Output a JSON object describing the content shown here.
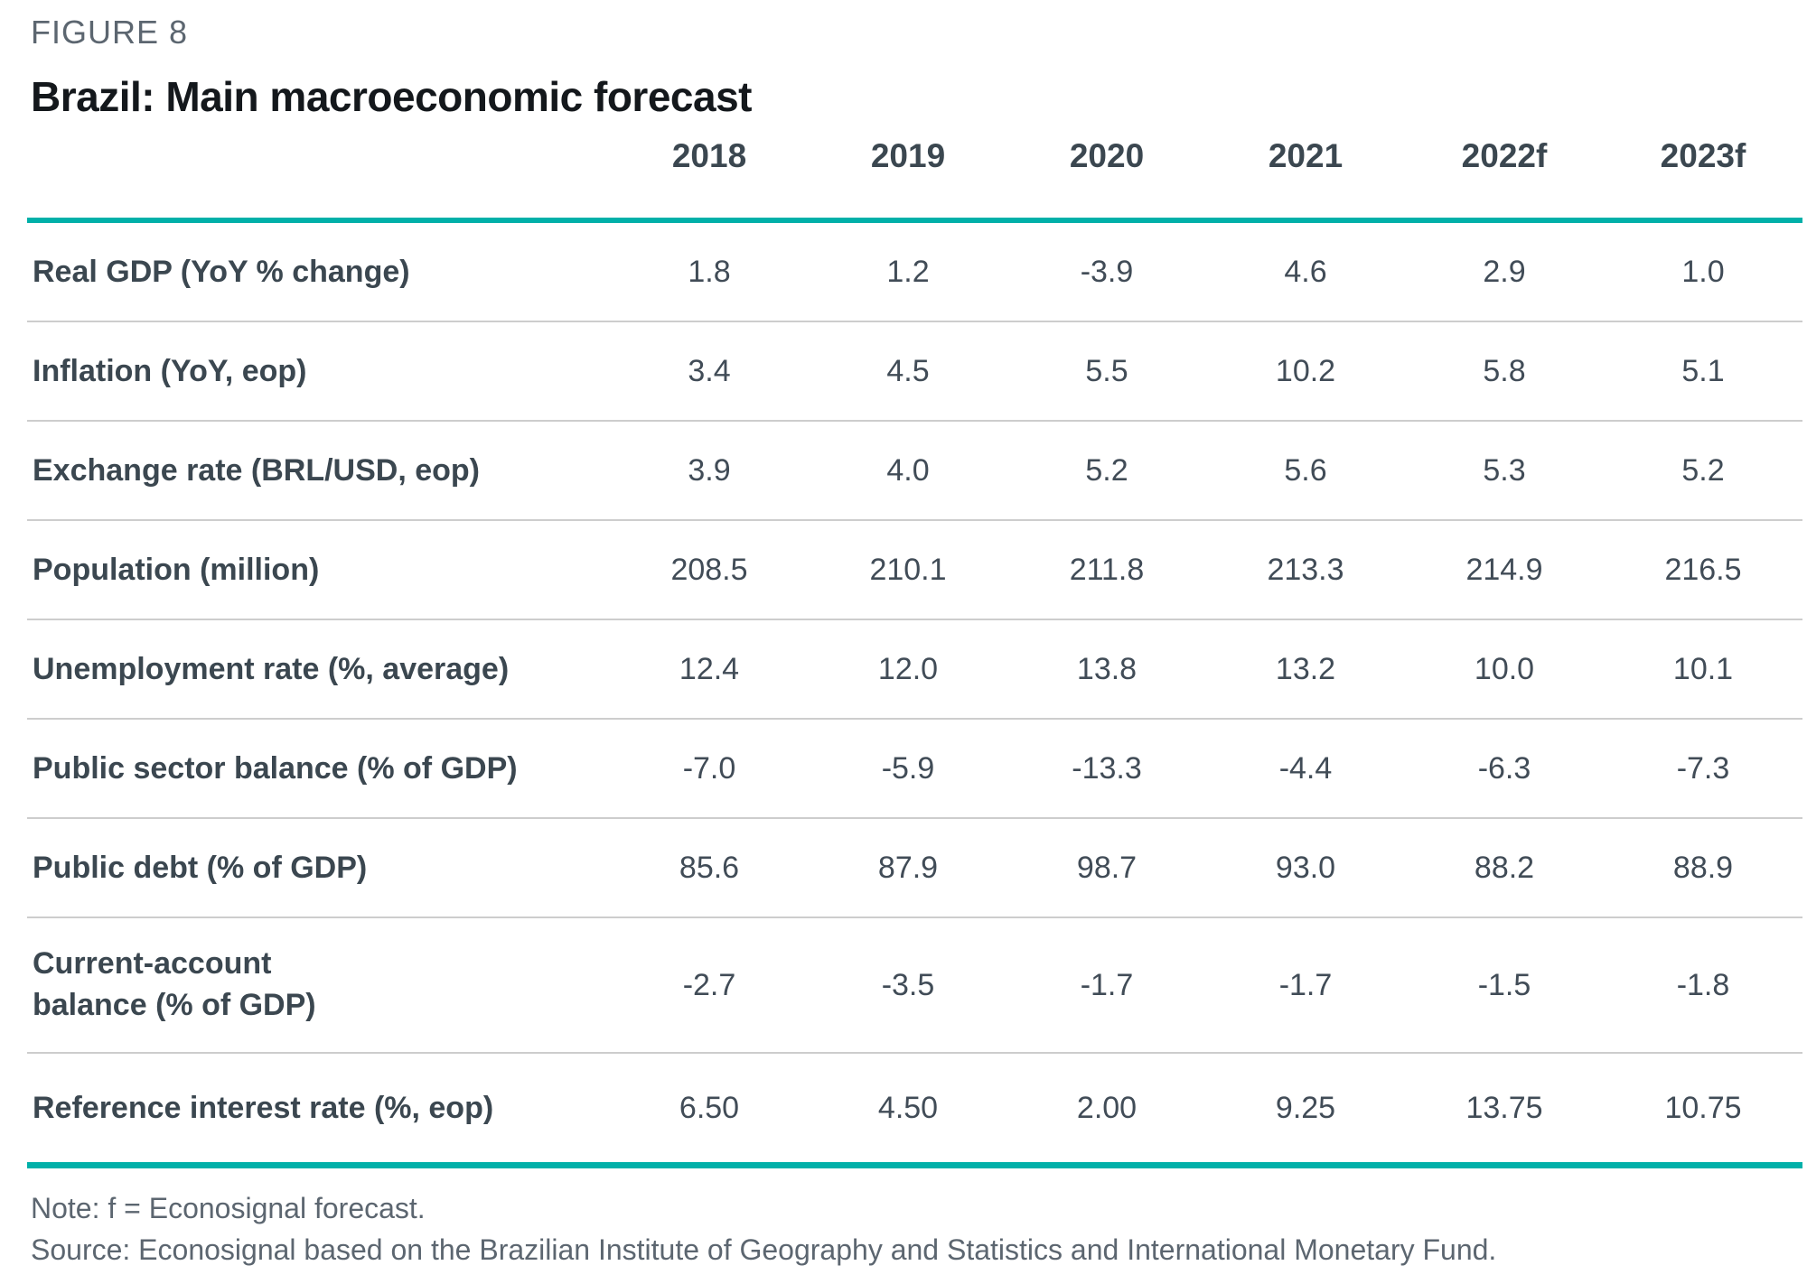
{
  "colors": {
    "accent_teal": "#00b0a9",
    "row_divider": "#cdcdcd",
    "heading_gray": "#5c6670",
    "label_dark_slate": "#3b4750",
    "title_black": "#14181c"
  },
  "chart_data": {
    "type": "table",
    "figure_label": "FIGURE 8",
    "title": "Brazil: Main macroeconomic forecast",
    "columns": [
      "2018",
      "2019",
      "2020",
      "2021",
      "2022f",
      "2023f"
    ],
    "rows": [
      {
        "label": "Real GDP (YoY % change)",
        "values": [
          "1.8",
          "1.2",
          "-3.9",
          "4.6",
          "2.9",
          "1.0"
        ]
      },
      {
        "label": "Inflation (YoY, eop)",
        "values": [
          "3.4",
          "4.5",
          "5.5",
          "10.2",
          "5.8",
          "5.1"
        ]
      },
      {
        "label": "Exchange rate (BRL/USD, eop)",
        "values": [
          "3.9",
          "4.0",
          "5.2",
          "5.6",
          "5.3",
          "5.2"
        ]
      },
      {
        "label": "Population (million)",
        "values": [
          "208.5",
          "210.1",
          "211.8",
          "213.3",
          "214.9",
          "216.5"
        ]
      },
      {
        "label": "Unemployment rate (%, average)",
        "values": [
          "12.4",
          "12.0",
          "13.8",
          "13.2",
          "10.0",
          "10.1"
        ]
      },
      {
        "label": "Public sector balance (% of GDP)",
        "values": [
          "-7.0",
          "-5.9",
          "-13.3",
          "-4.4",
          "-6.3",
          "-7.3"
        ]
      },
      {
        "label": "Public debt (% of GDP)",
        "values": [
          "85.6",
          "87.9",
          "98.7",
          "93.0",
          "88.2",
          "88.9"
        ]
      },
      {
        "label": "Current-account balance (% of GDP)",
        "values": [
          "-2.7",
          "-3.5",
          "-1.7",
          "-1.7",
          "-1.5",
          "-1.8"
        ]
      },
      {
        "label": "Reference interest rate (%, eop)",
        "values": [
          "6.50",
          "4.50",
          "2.00",
          "9.25",
          "13.75",
          "10.75"
        ]
      }
    ],
    "note": "Note: f = Econosignal forecast.",
    "source": "Source: Econosignal based on the Brazilian Institute of Geography and Statistics and International Monetary Fund."
  }
}
